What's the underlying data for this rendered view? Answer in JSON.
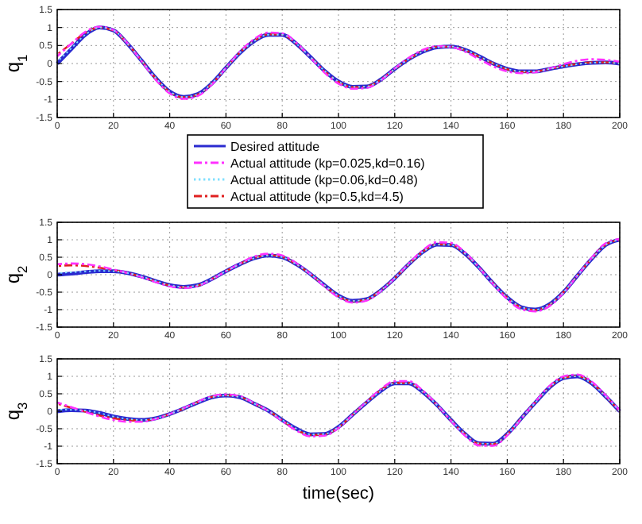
{
  "chart_data": [
    {
      "type": "line",
      "ylabel": "q$_{1}$",
      "legend": "bottom",
      "grid": true,
      "xlim": [
        0,
        200
      ],
      "xticks": [
        0,
        20,
        40,
        60,
        80,
        100,
        120,
        140,
        160,
        180,
        200
      ],
      "ylim": [
        -1.5,
        1.5
      ],
      "yticks": [
        -1.5,
        -1,
        -0.5,
        0,
        0.5,
        1,
        1.5
      ],
      "x": [
        0,
        5,
        10,
        15,
        20,
        25,
        30,
        35,
        40,
        45,
        50,
        55,
        60,
        65,
        70,
        75,
        80,
        85,
        90,
        95,
        100,
        105,
        110,
        115,
        120,
        125,
        130,
        135,
        140,
        145,
        150,
        155,
        160,
        165,
        170,
        175,
        180,
        185,
        190,
        195,
        200
      ],
      "series": [
        {
          "name": "Desired attitude",
          "color": "#2a2ad0",
          "line_style": "solid",
          "values": [
            0,
            0.4,
            0.8,
            1.0,
            0.92,
            0.55,
            0.08,
            -0.4,
            -0.78,
            -0.93,
            -0.85,
            -0.55,
            -0.12,
            0.3,
            0.62,
            0.8,
            0.8,
            0.55,
            0.18,
            -0.2,
            -0.5,
            -0.65,
            -0.64,
            -0.45,
            -0.15,
            0.12,
            0.33,
            0.45,
            0.47,
            0.38,
            0.2,
            0.0,
            -0.15,
            -0.22,
            -0.22,
            -0.15,
            -0.08,
            -0.02,
            0.02,
            0.03,
            0.0
          ]
        },
        {
          "name": "Actual attitude (kp=0.025,kd=0.16)",
          "color": "#ff30ff",
          "line_style": "dashed",
          "values": [
            0.2,
            0.55,
            0.88,
            1.02,
            0.93,
            0.56,
            0.06,
            -0.45,
            -0.83,
            -0.98,
            -0.9,
            -0.58,
            -0.12,
            0.33,
            0.68,
            0.86,
            0.84,
            0.58,
            0.17,
            -0.25,
            -0.56,
            -0.7,
            -0.68,
            -0.47,
            -0.14,
            0.16,
            0.38,
            0.48,
            0.46,
            0.33,
            0.12,
            -0.08,
            -0.22,
            -0.27,
            -0.24,
            -0.14,
            -0.02,
            0.08,
            0.12,
            0.1,
            0.05
          ]
        },
        {
          "name": "Actual attitude (kp=0.06,kd=0.48)",
          "color": "#80e0ff",
          "line_style": "dotted",
          "values": [
            0.05,
            0.42,
            0.8,
            1.0,
            0.92,
            0.55,
            0.08,
            -0.4,
            -0.78,
            -0.93,
            -0.85,
            -0.55,
            -0.12,
            0.3,
            0.62,
            0.8,
            0.8,
            0.55,
            0.18,
            -0.2,
            -0.5,
            -0.65,
            -0.64,
            -0.45,
            -0.15,
            0.12,
            0.33,
            0.45,
            0.47,
            0.38,
            0.2,
            0.0,
            -0.15,
            -0.22,
            -0.22,
            -0.15,
            -0.08,
            -0.02,
            0.02,
            0.03,
            0.0
          ]
        },
        {
          "name": "Actual attitude (kp=0.5,kd=4.5)",
          "color": "#e02020",
          "line_style": "dashed",
          "values": [
            0.25,
            0.55,
            0.85,
            1.0,
            0.92,
            0.55,
            0.08,
            -0.41,
            -0.79,
            -0.94,
            -0.86,
            -0.56,
            -0.12,
            0.31,
            0.63,
            0.81,
            0.8,
            0.55,
            0.18,
            -0.21,
            -0.51,
            -0.66,
            -0.64,
            -0.45,
            -0.15,
            0.13,
            0.34,
            0.46,
            0.47,
            0.37,
            0.19,
            0.0,
            -0.16,
            -0.23,
            -0.22,
            -0.15,
            -0.07,
            -0.01,
            0.03,
            0.03,
            0.0
          ]
        }
      ]
    },
    {
      "type": "line",
      "ylabel": "q$_{2}$",
      "grid": true,
      "xlim": [
        0,
        200
      ],
      "xticks": [
        0,
        20,
        40,
        60,
        80,
        100,
        120,
        140,
        160,
        180,
        200
      ],
      "ylim": [
        -1.5,
        1.5
      ],
      "yticks": [
        -1.5,
        -1,
        -0.5,
        0,
        0.5,
        1,
        1.5
      ],
      "x": [
        0,
        5,
        10,
        15,
        20,
        25,
        30,
        35,
        40,
        45,
        50,
        55,
        60,
        65,
        70,
        75,
        80,
        85,
        90,
        95,
        100,
        105,
        110,
        115,
        120,
        125,
        130,
        135,
        140,
        145,
        150,
        155,
        160,
        165,
        170,
        175,
        180,
        185,
        190,
        195,
        200
      ],
      "series": [
        {
          "color": "#2a2ad0",
          "line_style": "solid",
          "values": [
            0,
            0.03,
            0.07,
            0.1,
            0.1,
            0.05,
            -0.05,
            -0.18,
            -0.3,
            -0.35,
            -0.3,
            -0.12,
            0.1,
            0.3,
            0.47,
            0.55,
            0.5,
            0.3,
            0.02,
            -0.3,
            -0.6,
            -0.75,
            -0.7,
            -0.45,
            -0.1,
            0.3,
            0.65,
            0.86,
            0.85,
            0.6,
            0.2,
            -0.25,
            -0.65,
            -0.93,
            -1.0,
            -0.85,
            -0.5,
            -0.02,
            0.45,
            0.85,
            1.0
          ]
        },
        {
          "color": "#ff30ff",
          "line_style": "dashed",
          "values": [
            0.3,
            0.32,
            0.3,
            0.24,
            0.15,
            0.05,
            -0.07,
            -0.21,
            -0.33,
            -0.38,
            -0.32,
            -0.13,
            0.1,
            0.32,
            0.52,
            0.6,
            0.55,
            0.33,
            0.02,
            -0.33,
            -0.65,
            -0.8,
            -0.74,
            -0.47,
            -0.1,
            0.32,
            0.7,
            0.93,
            0.91,
            0.64,
            0.2,
            -0.27,
            -0.7,
            -0.99,
            -1.05,
            -0.9,
            -0.52,
            -0.02,
            0.48,
            0.9,
            1.02
          ]
        },
        {
          "color": "#80e0ff",
          "line_style": "dotted",
          "values": [
            0.05,
            0.07,
            0.09,
            0.11,
            0.1,
            0.05,
            -0.05,
            -0.18,
            -0.3,
            -0.35,
            -0.3,
            -0.12,
            0.1,
            0.3,
            0.47,
            0.55,
            0.5,
            0.3,
            0.02,
            -0.3,
            -0.6,
            -0.75,
            -0.7,
            -0.45,
            -0.1,
            0.3,
            0.65,
            0.86,
            0.85,
            0.6,
            0.2,
            -0.25,
            -0.65,
            -0.93,
            -1.0,
            -0.85,
            -0.5,
            -0.02,
            0.45,
            0.85,
            1.0
          ]
        },
        {
          "color": "#e02020",
          "line_style": "dashed",
          "values": [
            0.25,
            0.27,
            0.25,
            0.2,
            0.13,
            0.05,
            -0.06,
            -0.19,
            -0.31,
            -0.36,
            -0.31,
            -0.12,
            0.1,
            0.31,
            0.48,
            0.56,
            0.51,
            0.3,
            0.02,
            -0.31,
            -0.61,
            -0.76,
            -0.71,
            -0.45,
            -0.1,
            0.3,
            0.66,
            0.87,
            0.86,
            0.6,
            0.2,
            -0.25,
            -0.66,
            -0.94,
            -1.01,
            -0.86,
            -0.5,
            -0.02,
            0.46,
            0.86,
            1.0
          ]
        }
      ]
    },
    {
      "type": "line",
      "ylabel": "q$_{3}$",
      "xlabel": "time(sec)",
      "grid": true,
      "xlim": [
        0,
        200
      ],
      "xticks": [
        0,
        20,
        40,
        60,
        80,
        100,
        120,
        140,
        160,
        180,
        200
      ],
      "ylim": [
        -1.5,
        1.5
      ],
      "yticks": [
        -1.5,
        -1,
        -0.5,
        0,
        0.5,
        1,
        1.5
      ],
      "x": [
        0,
        5,
        10,
        15,
        20,
        25,
        30,
        35,
        40,
        45,
        50,
        55,
        60,
        65,
        70,
        75,
        80,
        85,
        90,
        95,
        100,
        105,
        110,
        115,
        120,
        125,
        130,
        135,
        140,
        145,
        150,
        155,
        160,
        165,
        170,
        175,
        180,
        185,
        190,
        195,
        200
      ],
      "series": [
        {
          "color": "#2a2ad0",
          "line_style": "solid",
          "values": [
            0,
            0.03,
            0.02,
            -0.05,
            -0.15,
            -0.22,
            -0.25,
            -0.2,
            -0.08,
            0.08,
            0.25,
            0.4,
            0.45,
            0.4,
            0.22,
            0.02,
            -0.25,
            -0.5,
            -0.66,
            -0.65,
            -0.45,
            -0.1,
            0.25,
            0.58,
            0.8,
            0.8,
            0.55,
            0.18,
            -0.25,
            -0.65,
            -0.92,
            -0.93,
            -0.65,
            -0.2,
            0.25,
            0.68,
            0.95,
            1.0,
            0.8,
            0.42,
            0.0
          ]
        },
        {
          "color": "#ff30ff",
          "line_style": "dashed",
          "values": [
            0.25,
            0.12,
            -0.02,
            -0.15,
            -0.25,
            -0.3,
            -0.3,
            -0.22,
            -0.08,
            0.09,
            0.27,
            0.43,
            0.48,
            0.43,
            0.23,
            0.01,
            -0.28,
            -0.55,
            -0.72,
            -0.7,
            -0.48,
            -0.1,
            0.27,
            0.63,
            0.86,
            0.86,
            0.59,
            0.19,
            -0.27,
            -0.7,
            -0.98,
            -0.99,
            -0.69,
            -0.21,
            0.27,
            0.72,
            1.0,
            1.05,
            0.85,
            0.45,
            0.02
          ]
        },
        {
          "color": "#80e0ff",
          "line_style": "dotted",
          "values": [
            0.05,
            0.04,
            0.02,
            -0.05,
            -0.15,
            -0.22,
            -0.25,
            -0.2,
            -0.08,
            0.08,
            0.25,
            0.4,
            0.45,
            0.4,
            0.22,
            0.02,
            -0.25,
            -0.5,
            -0.66,
            -0.65,
            -0.45,
            -0.1,
            0.25,
            0.58,
            0.8,
            0.8,
            0.55,
            0.18,
            -0.25,
            -0.65,
            -0.92,
            -0.93,
            -0.65,
            -0.2,
            0.25,
            0.68,
            0.95,
            1.0,
            0.8,
            0.42,
            0.0
          ]
        },
        {
          "color": "#e02020",
          "line_style": "dashed",
          "values": [
            0.22,
            0.1,
            -0.01,
            -0.12,
            -0.2,
            -0.25,
            -0.27,
            -0.21,
            -0.08,
            0.08,
            0.26,
            0.41,
            0.46,
            0.41,
            0.22,
            0.02,
            -0.26,
            -0.52,
            -0.68,
            -0.66,
            -0.46,
            -0.1,
            0.26,
            0.6,
            0.81,
            0.81,
            0.56,
            0.18,
            -0.26,
            -0.66,
            -0.93,
            -0.94,
            -0.66,
            -0.2,
            0.26,
            0.69,
            0.96,
            1.01,
            0.81,
            0.43,
            0.0
          ]
        }
      ]
    }
  ]
}
